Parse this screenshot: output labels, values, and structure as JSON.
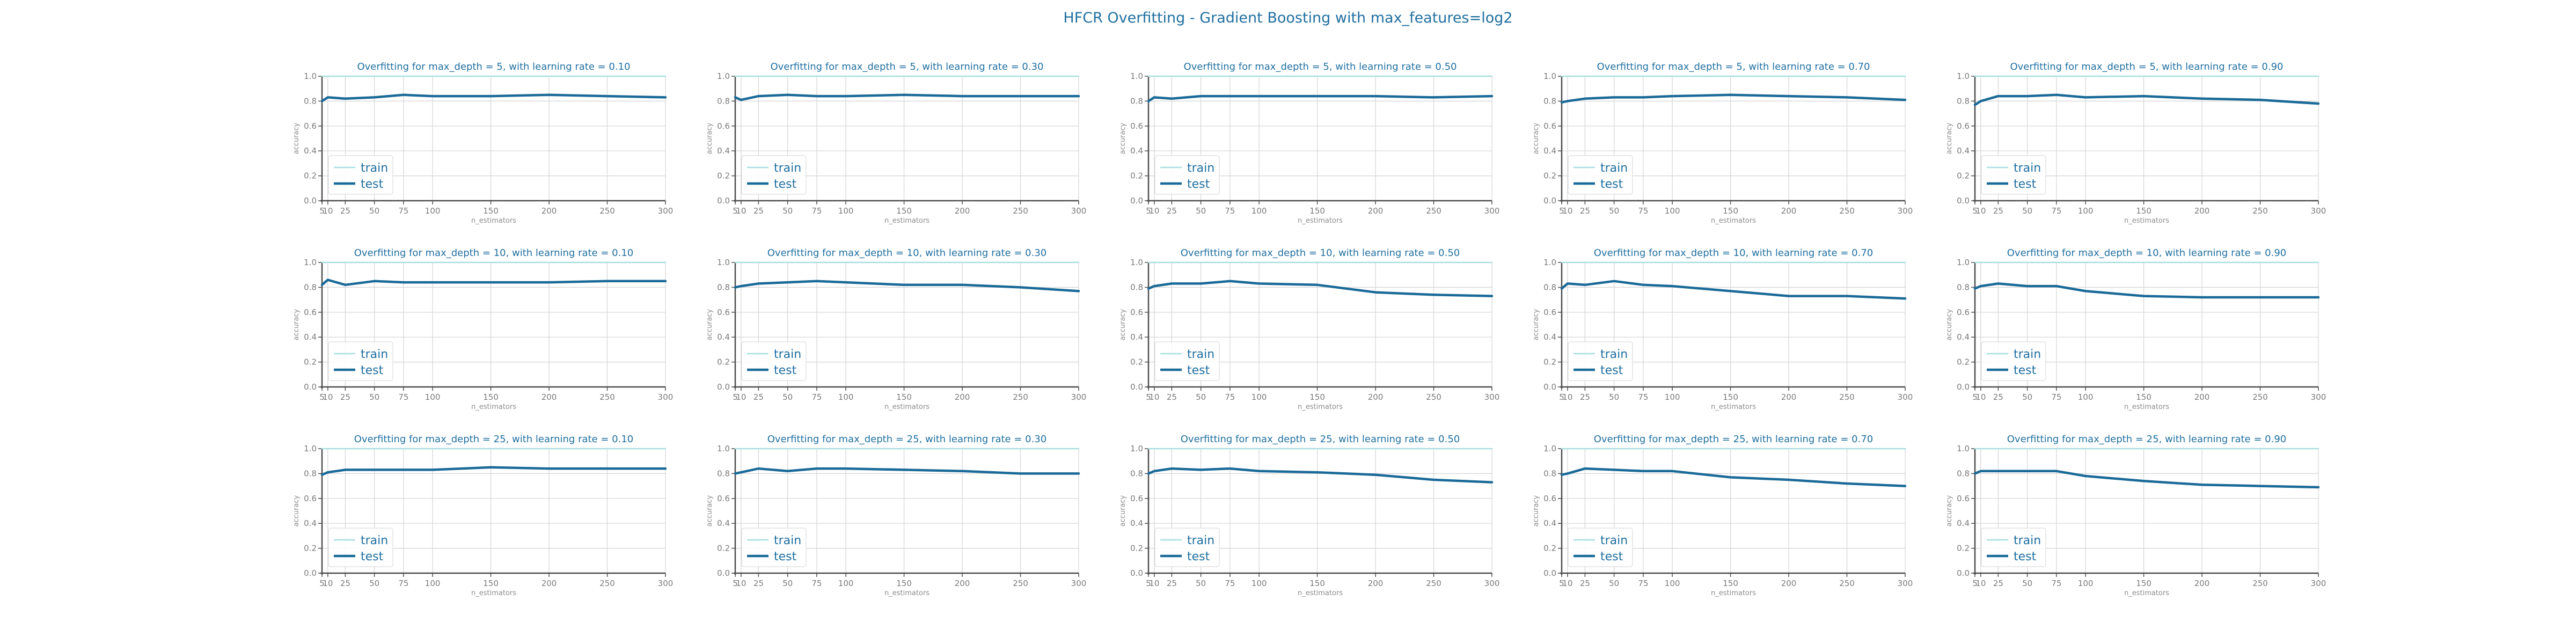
{
  "suptitle": "HFCR Overfitting - Gradient Boosting with max_features=log2",
  "chart_data": {
    "type": "line",
    "xlabel": "n_estimators",
    "ylabel": "accuracy",
    "xlim": [
      5,
      300
    ],
    "ylim": [
      0,
      1
    ],
    "x_ticks": [
      5,
      10,
      25,
      50,
      75,
      100,
      150,
      200,
      250,
      300
    ],
    "x_tick_labels": [
      "5",
      "10",
      "25",
      "50",
      "75",
      "100",
      "150",
      "200",
      "250",
      "300"
    ],
    "y_ticks": [
      0.0,
      0.2,
      0.4,
      0.6,
      0.8,
      1.0
    ],
    "y_tick_labels": [
      "0.0",
      "0.2",
      "0.4",
      "0.6",
      "0.8",
      "1.0"
    ],
    "x": [
      5,
      10,
      25,
      50,
      75,
      100,
      150,
      200,
      250,
      300
    ],
    "legend": [
      "train",
      "test"
    ],
    "legend_position": "lower-left",
    "grid": true,
    "colors": {
      "train": "#a8dfe0",
      "test": "#1a6a98",
      "title": "#1f6fa0",
      "axis": "#4d4d4d",
      "grid": "#d4d4d4"
    },
    "panels": [
      {
        "title": "Overfitting for max_depth = 5, with learning rate = 0.10",
        "series": [
          {
            "name": "train",
            "values": [
              1,
              1,
              1,
              1,
              1,
              1,
              1,
              1,
              1,
              1
            ]
          },
          {
            "name": "test",
            "values": [
              0.8,
              0.83,
              0.82,
              0.83,
              0.85,
              0.84,
              0.84,
              0.85,
              0.84,
              0.83
            ]
          }
        ]
      },
      {
        "title": "Overfitting for max_depth = 5, with learning rate = 0.30",
        "series": [
          {
            "name": "train",
            "values": [
              1,
              1,
              1,
              1,
              1,
              1,
              1,
              1,
              1,
              1
            ]
          },
          {
            "name": "test",
            "values": [
              0.83,
              0.81,
              0.84,
              0.85,
              0.84,
              0.84,
              0.85,
              0.84,
              0.84,
              0.84
            ]
          }
        ]
      },
      {
        "title": "Overfitting for max_depth = 5, with learning rate = 0.50",
        "series": [
          {
            "name": "train",
            "values": [
              1,
              1,
              1,
              1,
              1,
              1,
              1,
              1,
              1,
              1
            ]
          },
          {
            "name": "test",
            "values": [
              0.8,
              0.83,
              0.82,
              0.84,
              0.84,
              0.84,
              0.84,
              0.84,
              0.83,
              0.84
            ]
          }
        ]
      },
      {
        "title": "Overfitting for max_depth = 5, with learning rate = 0.70",
        "series": [
          {
            "name": "train",
            "values": [
              1,
              1,
              1,
              1,
              1,
              1,
              1,
              1,
              1,
              1
            ]
          },
          {
            "name": "test",
            "values": [
              0.79,
              0.8,
              0.82,
              0.83,
              0.83,
              0.84,
              0.85,
              0.84,
              0.83,
              0.81
            ]
          }
        ]
      },
      {
        "title": "Overfitting for max_depth = 5, with learning rate = 0.90",
        "series": [
          {
            "name": "train",
            "values": [
              1,
              1,
              1,
              1,
              1,
              1,
              1,
              1,
              1,
              1
            ]
          },
          {
            "name": "test",
            "values": [
              0.77,
              0.8,
              0.84,
              0.84,
              0.85,
              0.83,
              0.84,
              0.82,
              0.81,
              0.78
            ]
          }
        ]
      },
      {
        "title": "Overfitting for max_depth = 10, with learning rate = 0.10",
        "series": [
          {
            "name": "train",
            "values": [
              1,
              1,
              1,
              1,
              1,
              1,
              1,
              1,
              1,
              1
            ]
          },
          {
            "name": "test",
            "values": [
              0.82,
              0.86,
              0.82,
              0.85,
              0.84,
              0.84,
              0.84,
              0.84,
              0.85,
              0.85
            ]
          }
        ]
      },
      {
        "title": "Overfitting for max_depth = 10, with learning rate = 0.30",
        "series": [
          {
            "name": "train",
            "values": [
              1,
              1,
              1,
              1,
              1,
              1,
              1,
              1,
              1,
              1
            ]
          },
          {
            "name": "test",
            "values": [
              0.8,
              0.81,
              0.83,
              0.84,
              0.85,
              0.84,
              0.82,
              0.82,
              0.8,
              0.77
            ]
          }
        ]
      },
      {
        "title": "Overfitting for max_depth = 10, with learning rate = 0.50",
        "series": [
          {
            "name": "train",
            "values": [
              1,
              1,
              1,
              1,
              1,
              1,
              1,
              1,
              1,
              1
            ]
          },
          {
            "name": "test",
            "values": [
              0.79,
              0.81,
              0.83,
              0.83,
              0.85,
              0.83,
              0.82,
              0.76,
              0.74,
              0.73
            ]
          }
        ]
      },
      {
        "title": "Overfitting for max_depth = 10, with learning rate = 0.70",
        "series": [
          {
            "name": "train",
            "values": [
              1,
              1,
              1,
              1,
              1,
              1,
              1,
              1,
              1,
              1
            ]
          },
          {
            "name": "test",
            "values": [
              0.79,
              0.83,
              0.82,
              0.85,
              0.82,
              0.81,
              0.77,
              0.73,
              0.73,
              0.71
            ]
          }
        ]
      },
      {
        "title": "Overfitting for max_depth = 10, with learning rate = 0.90",
        "series": [
          {
            "name": "train",
            "values": [
              1,
              1,
              1,
              1,
              1,
              1,
              1,
              1,
              1,
              1
            ]
          },
          {
            "name": "test",
            "values": [
              0.79,
              0.81,
              0.83,
              0.81,
              0.81,
              0.77,
              0.73,
              0.72,
              0.72,
              0.72
            ]
          }
        ]
      },
      {
        "title": "Overfitting for max_depth = 25, with learning rate = 0.10",
        "series": [
          {
            "name": "train",
            "values": [
              1,
              1,
              1,
              1,
              1,
              1,
              1,
              1,
              1,
              1
            ]
          },
          {
            "name": "test",
            "values": [
              0.79,
              0.81,
              0.83,
              0.83,
              0.83,
              0.83,
              0.85,
              0.84,
              0.84,
              0.84
            ]
          }
        ]
      },
      {
        "title": "Overfitting for max_depth = 25, with learning rate = 0.30",
        "series": [
          {
            "name": "train",
            "values": [
              1,
              1,
              1,
              1,
              1,
              1,
              1,
              1,
              1,
              1
            ]
          },
          {
            "name": "test",
            "values": [
              0.8,
              0.81,
              0.84,
              0.82,
              0.84,
              0.84,
              0.83,
              0.82,
              0.8,
              0.8
            ]
          }
        ]
      },
      {
        "title": "Overfitting for max_depth = 25, with learning rate = 0.50",
        "series": [
          {
            "name": "train",
            "values": [
              1,
              1,
              1,
              1,
              1,
              1,
              1,
              1,
              1,
              1
            ]
          },
          {
            "name": "test",
            "values": [
              0.8,
              0.82,
              0.84,
              0.83,
              0.84,
              0.82,
              0.81,
              0.79,
              0.75,
              0.73
            ]
          }
        ]
      },
      {
        "title": "Overfitting for max_depth = 25, with learning rate = 0.70",
        "series": [
          {
            "name": "train",
            "values": [
              1,
              1,
              1,
              1,
              1,
              1,
              1,
              1,
              1,
              1
            ]
          },
          {
            "name": "test",
            "values": [
              0.79,
              0.8,
              0.84,
              0.83,
              0.82,
              0.82,
              0.77,
              0.75,
              0.72,
              0.7
            ]
          }
        ]
      },
      {
        "title": "Overfitting for max_depth = 25, with learning rate = 0.90",
        "series": [
          {
            "name": "train",
            "values": [
              1,
              1,
              1,
              1,
              1,
              1,
              1,
              1,
              1,
              1
            ]
          },
          {
            "name": "test",
            "values": [
              0.8,
              0.82,
              0.82,
              0.82,
              0.82,
              0.78,
              0.74,
              0.71,
              0.7,
              0.69
            ]
          }
        ]
      }
    ]
  }
}
